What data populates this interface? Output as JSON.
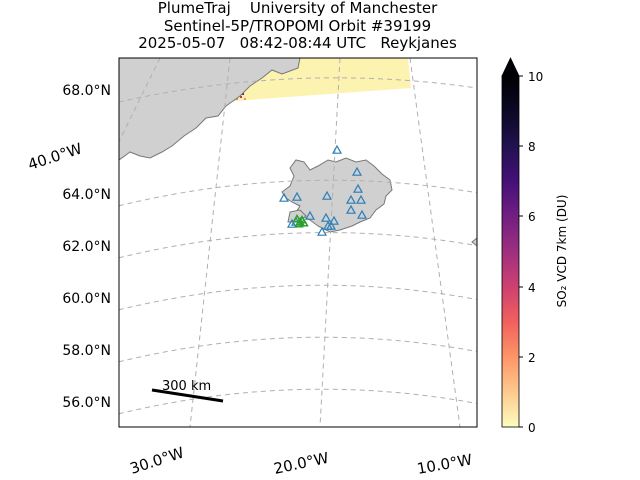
{
  "header": {
    "line1": "PlumeTraj    University of Manchester",
    "line2": "Sentinel-5P/TROPOMI Orbit #39199",
    "line3": "2025-05-07   08:42-08:44 UTC   Reykjanes"
  },
  "map": {
    "lat_labels": [
      "68.0°N",
      "64.0°N",
      "62.0°N",
      "60.0°N",
      "58.0°N",
      "56.0°N"
    ],
    "lon_labels_bottom": [
      "30.0°W",
      "20.0°W",
      "10.0°W"
    ],
    "lon_label_left": "40.0°W",
    "scale_bar_label": "300 km",
    "land_color": "#d0d0d0",
    "grid_style": "dashed"
  },
  "colorbar": {
    "label": "SO₂ VCD 7km (DU)",
    "ticks": [
      "0",
      "2",
      "4",
      "6",
      "8",
      "10"
    ],
    "range": [
      0,
      10
    ],
    "extend": "max",
    "colormap": "magma_r"
  },
  "markers": {
    "volcano_color": "#2a7db8",
    "source_color": "#2ca02c"
  }
}
